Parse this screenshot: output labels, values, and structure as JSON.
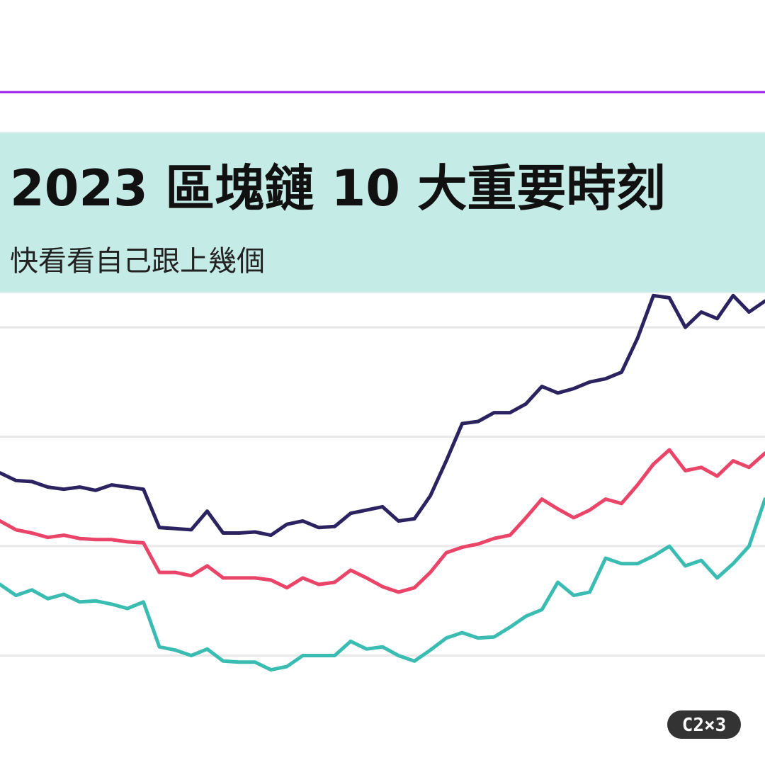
{
  "chart_data": {
    "type": "line",
    "title": "2023 區塊鏈 10 大重要時刻",
    "subtitle": "快看看自己跟上幾個",
    "logo": "C2×3",
    "categories": [
      null,
      null,
      null,
      null,
      null,
      null,
      null,
      null,
      null,
      null,
      null,
      null,
      null,
      null,
      null,
      null,
      null,
      null,
      null,
      null,
      null,
      null,
      null,
      null,
      null,
      null,
      null,
      null,
      null,
      null,
      null,
      null,
      null,
      null,
      null,
      null,
      null,
      null,
      null,
      null,
      null,
      null,
      null,
      null,
      null,
      null,
      null,
      null,
      null
    ],
    "ylim": [
      -100,
      515
    ],
    "yticks": [
      0,
      100,
      200,
      300
    ],
    "grid": true,
    "series": [
      {
        "color": "#2a2360",
        "values": [
          167,
          160,
          159,
          154,
          152,
          154,
          151,
          156,
          154,
          152,
          117,
          116,
          115,
          132,
          112,
          112,
          113,
          110,
          120,
          123,
          117,
          118,
          130,
          133,
          136,
          123,
          125,
          146,
          178,
          212,
          214,
          222,
          222,
          230,
          246,
          240,
          244,
          250,
          253,
          259,
          290,
          329,
          327,
          300,
          314,
          308,
          329,
          314,
          324
        ]
      },
      {
        "color": "#ea4468",
        "values": [
          123,
          115,
          112,
          108,
          110,
          107,
          106,
          106,
          104,
          103,
          76,
          76,
          73,
          82,
          71,
          71,
          71,
          69,
          62,
          71,
          65,
          67,
          78,
          71,
          63,
          58,
          62,
          76,
          94,
          99,
          102,
          107,
          110,
          126,
          143,
          134,
          126,
          133,
          143,
          139,
          156,
          175,
          188,
          169,
          172,
          164,
          178,
          172,
          185
        ]
      },
      {
        "color": "#3bbcb2",
        "values": [
          65,
          55,
          60,
          52,
          56,
          49,
          50,
          47,
          43,
          49,
          8,
          5,
          0,
          6,
          -5,
          -6,
          -6,
          -13,
          -10,
          0,
          0,
          0,
          13,
          6,
          8,
          0,
          -5,
          5,
          16,
          21,
          16,
          17,
          26,
          36,
          42,
          67,
          55,
          58,
          89,
          84,
          84,
          91,
          100,
          82,
          87,
          71,
          84,
          100,
          143
        ]
      }
    ]
  }
}
